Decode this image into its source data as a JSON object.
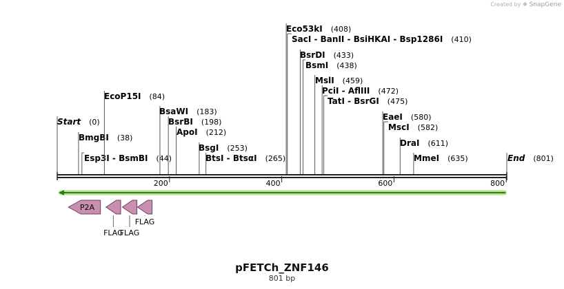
{
  "credit": {
    "prefix": "Created by",
    "brand": "SnapGene"
  },
  "title": "pFETCh_ZNF146",
  "length_label": "801 bp",
  "map": {
    "length": 801,
    "ticks": [
      200,
      400,
      600,
      800
    ]
  },
  "enzymes": [
    {
      "names": "Start",
      "pos_label": "(0)",
      "cut": 0,
      "italic": true
    },
    {
      "names": "BmgBI",
      "pos_label": "(38)",
      "cut": 38
    },
    {
      "names": "Esp3I  -  BsmBI",
      "pos_label": "(44)",
      "cut": 44
    },
    {
      "names": "EcoP15I",
      "pos_label": "(84)",
      "cut": 84
    },
    {
      "names": "BsaWI",
      "pos_label": "(183)",
      "cut": 183
    },
    {
      "names": "BsrBI",
      "pos_label": "(198)",
      "cut": 198
    },
    {
      "names": "ApoI",
      "pos_label": "(212)",
      "cut": 212
    },
    {
      "names": "BsgI",
      "pos_label": "(253)",
      "cut": 253
    },
    {
      "names": "BtsI  -  BtsαI",
      "pos_label": "(265)",
      "cut": 265
    },
    {
      "names": "Eco53kI",
      "pos_label": "(408)",
      "cut": 408
    },
    {
      "names": "SacI  -  BanII  -  BsiHKAI  -  Bsp1286I",
      "pos_label": "(410)",
      "cut": 410
    },
    {
      "names": "BsrDI",
      "pos_label": "(433)",
      "cut": 433
    },
    {
      "names": "BsmI",
      "pos_label": "(438)",
      "cut": 438
    },
    {
      "names": "MslI",
      "pos_label": "(459)",
      "cut": 459
    },
    {
      "names": "PciI  -  AflIII",
      "pos_label": "(472)",
      "cut": 472
    },
    {
      "names": "TatI  -  BsrGI",
      "pos_label": "(475)",
      "cut": 475
    },
    {
      "names": "EaeI",
      "pos_label": "(580)",
      "cut": 580
    },
    {
      "names": "MscI",
      "pos_label": "(582)",
      "cut": 582
    },
    {
      "names": "DraI",
      "pos_label": "(611)",
      "cut": 611
    },
    {
      "names": "MmeI",
      "pos_label": "(635)",
      "cut": 635
    },
    {
      "names": "End",
      "pos_label": "(801)",
      "cut": 801,
      "italic": true
    }
  ],
  "features": [
    {
      "name": "P2A",
      "start": 20,
      "end": 77,
      "direction": "reverse",
      "label_inside": true
    },
    {
      "name": "FLAG",
      "start": 87,
      "end": 113,
      "direction": "reverse",
      "label_inside": false
    },
    {
      "name": "FLAG",
      "start": 116,
      "end": 142,
      "direction": "reverse",
      "label_inside": false
    },
    {
      "name": "FLAG",
      "start": 143,
      "end": 169,
      "direction": "reverse",
      "label_inside": false
    }
  ],
  "colors": {
    "backbone": "#222222",
    "orf_arrow": "#2e7d1a",
    "orf_glow": "#b6e08a",
    "feature_fill": "#c98fb0",
    "feature_stroke": "#6b3f58"
  }
}
